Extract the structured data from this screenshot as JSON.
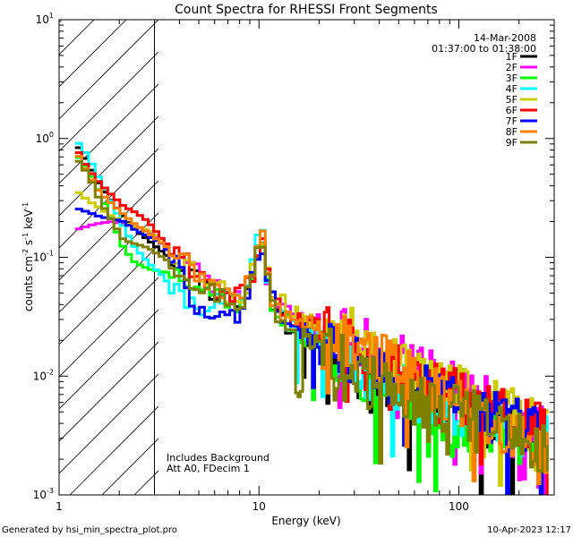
{
  "chart_data": {
    "type": "line",
    "title": "Count Spectra for RHESSI Front Segments",
    "xlabel": "Energy (keV)",
    "ylabel": "counts cm^-2 s^-1 keV^-1",
    "xscale": "log",
    "yscale": "log",
    "xlim": [
      1,
      300
    ],
    "ylim": [
      0.001,
      10
    ],
    "x_ticks": [
      {
        "value": 1,
        "label": "1"
      },
      {
        "value": 10,
        "label": "10"
      },
      {
        "value": 100,
        "label": "100"
      }
    ],
    "y_ticks": [
      {
        "value": 10,
        "base": "10",
        "exp": "1"
      },
      {
        "value": 1,
        "base": "10",
        "exp": "0"
      },
      {
        "value": 0.1,
        "base": "10",
        "exp": "-1"
      },
      {
        "value": 0.01,
        "base": "10",
        "exp": "-2"
      },
      {
        "value": 0.001,
        "base": "10",
        "exp": "-3"
      }
    ],
    "hatched_region": [
      1,
      3
    ],
    "date": "14-Mar-2008",
    "time_range": "01:37:00 to 01:38:00",
    "annotations": [
      "Includes Background",
      "Att A0, FDecim 1"
    ],
    "footer_left": "Generated by hsi_min_spectra_plot.pro",
    "footer_right": "10-Apr-2023 12:17",
    "series": [
      {
        "name": "1F",
        "color": "#000000",
        "seed": 11,
        "points": [
          [
            1.2,
            0.93
          ],
          [
            1.4,
            0.62
          ],
          [
            1.6,
            0.4
          ],
          [
            1.85,
            0.29
          ],
          [
            2.1,
            0.22
          ],
          [
            2.4,
            0.17
          ],
          [
            2.8,
            0.14
          ],
          [
            3.3,
            0.11
          ],
          [
            4.0,
            0.085
          ],
          [
            5.0,
            0.065
          ],
          [
            6.0,
            0.05
          ],
          [
            7.0,
            0.045
          ],
          [
            8.0,
            0.04
          ],
          [
            9.0,
            0.055
          ],
          [
            10.3,
            0.14
          ],
          [
            11.0,
            0.07
          ],
          [
            12.0,
            0.035
          ],
          [
            15.0,
            0.025
          ],
          [
            20.0,
            0.02
          ],
          [
            30.0,
            0.012
          ],
          [
            40.0,
            0.009
          ],
          [
            60.0,
            0.007
          ],
          [
            100.0,
            0.005
          ],
          [
            150.0,
            0.004
          ],
          [
            200.0,
            0.0035
          ],
          [
            280.0,
            0.003
          ]
        ]
      },
      {
        "name": "2F",
        "color": "#ff00ff",
        "seed": 23,
        "points": [
          [
            1.2,
            0.17
          ],
          [
            1.5,
            0.19
          ],
          [
            1.8,
            0.2
          ],
          [
            2.2,
            0.19
          ],
          [
            2.7,
            0.17
          ],
          [
            3.3,
            0.14
          ],
          [
            4.0,
            0.1
          ],
          [
            5.0,
            0.075
          ],
          [
            6.0,
            0.055
          ],
          [
            7.0,
            0.05
          ],
          [
            8.0,
            0.045
          ],
          [
            9.0,
            0.06
          ],
          [
            10.3,
            0.16
          ],
          [
            11.0,
            0.075
          ],
          [
            12.0,
            0.04
          ],
          [
            15.0,
            0.03
          ],
          [
            20.0,
            0.027
          ],
          [
            30.0,
            0.02
          ],
          [
            40.0,
            0.016
          ],
          [
            60.0,
            0.013
          ],
          [
            100.0,
            0.008
          ],
          [
            150.0,
            0.0055
          ],
          [
            200.0,
            0.0045
          ],
          [
            280.0,
            0.0035
          ]
        ]
      },
      {
        "name": "3F",
        "color": "#00ff00",
        "seed": 37,
        "points": [
          [
            1.2,
            0.75
          ],
          [
            1.4,
            0.55
          ],
          [
            1.6,
            0.35
          ],
          [
            1.85,
            0.2
          ],
          [
            2.1,
            0.12
          ],
          [
            2.4,
            0.09
          ],
          [
            2.8,
            0.08
          ],
          [
            3.3,
            0.075
          ],
          [
            4.0,
            0.075
          ],
          [
            5.0,
            0.06
          ],
          [
            6.0,
            0.05
          ],
          [
            7.0,
            0.045
          ],
          [
            8.0,
            0.04
          ],
          [
            9.0,
            0.055
          ],
          [
            10.3,
            0.15
          ],
          [
            11.0,
            0.07
          ],
          [
            12.0,
            0.035
          ],
          [
            15.0,
            0.025
          ],
          [
            20.0,
            0.018
          ],
          [
            30.0,
            0.011
          ],
          [
            40.0,
            0.008
          ],
          [
            60.0,
            0.006
          ],
          [
            100.0,
            0.004
          ],
          [
            150.0,
            0.0035
          ],
          [
            200.0,
            0.003
          ],
          [
            280.0,
            0.0025
          ]
        ]
      },
      {
        "name": "4F",
        "color": "#00ffff",
        "seed": 41,
        "points": [
          [
            1.2,
            1.0
          ],
          [
            1.4,
            0.7
          ],
          [
            1.6,
            0.45
          ],
          [
            1.85,
            0.28
          ],
          [
            2.1,
            0.18
          ],
          [
            2.4,
            0.12
          ],
          [
            2.8,
            0.09
          ],
          [
            3.3,
            0.07
          ],
          [
            4.0,
            0.045
          ],
          [
            5.0,
            0.04
          ],
          [
            6.0,
            0.04
          ],
          [
            7.0,
            0.045
          ],
          [
            8.0,
            0.04
          ],
          [
            9.0,
            0.06
          ],
          [
            10.3,
            0.19
          ],
          [
            11.0,
            0.08
          ],
          [
            12.0,
            0.035
          ],
          [
            15.0,
            0.025
          ],
          [
            20.0,
            0.02
          ],
          [
            30.0,
            0.013
          ],
          [
            40.0,
            0.009
          ],
          [
            60.0,
            0.007
          ],
          [
            100.0,
            0.005
          ],
          [
            150.0,
            0.004
          ],
          [
            200.0,
            0.0035
          ],
          [
            280.0,
            0.003
          ]
        ]
      },
      {
        "name": "5F",
        "color": "#cccc00",
        "seed": 53,
        "points": [
          [
            1.2,
            0.37
          ],
          [
            1.4,
            0.3
          ],
          [
            1.6,
            0.26
          ],
          [
            1.85,
            0.22
          ],
          [
            2.1,
            0.2
          ],
          [
            2.4,
            0.18
          ],
          [
            2.8,
            0.17
          ],
          [
            3.3,
            0.14
          ],
          [
            4.0,
            0.1
          ],
          [
            5.0,
            0.075
          ],
          [
            6.0,
            0.06
          ],
          [
            7.0,
            0.05
          ],
          [
            8.0,
            0.045
          ],
          [
            9.0,
            0.06
          ],
          [
            10.3,
            0.17
          ],
          [
            11.0,
            0.08
          ],
          [
            12.0,
            0.045
          ],
          [
            15.0,
            0.035
          ],
          [
            20.0,
            0.03
          ],
          [
            30.0,
            0.022
          ],
          [
            40.0,
            0.017
          ],
          [
            60.0,
            0.011
          ],
          [
            100.0,
            0.0075
          ],
          [
            150.0,
            0.0055
          ],
          [
            200.0,
            0.0045
          ],
          [
            280.0,
            0.0035
          ]
        ]
      },
      {
        "name": "6F",
        "color": "#ff0000",
        "seed": 61,
        "points": [
          [
            1.2,
            0.85
          ],
          [
            1.4,
            0.55
          ],
          [
            1.6,
            0.42
          ],
          [
            1.85,
            0.33
          ],
          [
            2.1,
            0.27
          ],
          [
            2.4,
            0.24
          ],
          [
            2.8,
            0.2
          ],
          [
            3.3,
            0.14
          ],
          [
            4.0,
            0.1
          ],
          [
            5.0,
            0.075
          ],
          [
            6.0,
            0.055
          ],
          [
            7.0,
            0.05
          ],
          [
            8.0,
            0.045
          ],
          [
            9.0,
            0.06
          ],
          [
            10.3,
            0.16
          ],
          [
            11.0,
            0.075
          ],
          [
            12.0,
            0.04
          ],
          [
            15.0,
            0.03
          ],
          [
            20.0,
            0.025
          ],
          [
            30.0,
            0.018
          ],
          [
            40.0,
            0.014
          ],
          [
            60.0,
            0.01
          ],
          [
            100.0,
            0.007
          ],
          [
            150.0,
            0.005
          ],
          [
            200.0,
            0.004
          ],
          [
            280.0,
            0.0035
          ]
        ]
      },
      {
        "name": "7F",
        "color": "#0000ff",
        "seed": 73,
        "points": [
          [
            1.2,
            0.26
          ],
          [
            1.4,
            0.24
          ],
          [
            1.6,
            0.22
          ],
          [
            1.85,
            0.21
          ],
          [
            2.1,
            0.2
          ],
          [
            2.4,
            0.17
          ],
          [
            2.8,
            0.15
          ],
          [
            3.3,
            0.13
          ],
          [
            4.0,
            0.08
          ],
          [
            5.0,
            0.035
          ],
          [
            6.0,
            0.028
          ],
          [
            7.0,
            0.03
          ],
          [
            8.0,
            0.03
          ],
          [
            9.0,
            0.05
          ],
          [
            10.3,
            0.14
          ],
          [
            11.0,
            0.07
          ],
          [
            12.0,
            0.035
          ],
          [
            15.0,
            0.025
          ],
          [
            20.0,
            0.02
          ],
          [
            30.0,
            0.014
          ],
          [
            40.0,
            0.01
          ],
          [
            60.0,
            0.008
          ],
          [
            100.0,
            0.006
          ],
          [
            150.0,
            0.0045
          ],
          [
            200.0,
            0.0038
          ],
          [
            280.0,
            0.003
          ]
        ]
      },
      {
        "name": "8F",
        "color": "#ff8000",
        "seed": 89,
        "points": [
          [
            1.2,
            0.8
          ],
          [
            1.4,
            0.5
          ],
          [
            1.6,
            0.35
          ],
          [
            1.85,
            0.28
          ],
          [
            2.1,
            0.23
          ],
          [
            2.4,
            0.19
          ],
          [
            2.8,
            0.16
          ],
          [
            3.3,
            0.13
          ],
          [
            4.0,
            0.1
          ],
          [
            5.0,
            0.07
          ],
          [
            6.0,
            0.055
          ],
          [
            7.0,
            0.05
          ],
          [
            8.0,
            0.045
          ],
          [
            9.0,
            0.06
          ],
          [
            10.3,
            0.16
          ],
          [
            11.0,
            0.075
          ],
          [
            12.0,
            0.04
          ],
          [
            15.0,
            0.03
          ],
          [
            20.0,
            0.025
          ],
          [
            30.0,
            0.018
          ],
          [
            40.0,
            0.014
          ],
          [
            60.0,
            0.01
          ],
          [
            100.0,
            0.006
          ],
          [
            150.0,
            0.004
          ],
          [
            200.0,
            0.003
          ],
          [
            280.0,
            0.0025
          ]
        ]
      },
      {
        "name": "9F",
        "color": "#808000",
        "seed": 97,
        "points": [
          [
            1.2,
            0.7
          ],
          [
            1.4,
            0.5
          ],
          [
            1.6,
            0.3
          ],
          [
            1.85,
            0.2
          ],
          [
            2.1,
            0.14
          ],
          [
            2.4,
            0.13
          ],
          [
            2.8,
            0.12
          ],
          [
            3.3,
            0.1
          ],
          [
            4.0,
            0.08
          ],
          [
            5.0,
            0.06
          ],
          [
            6.0,
            0.05
          ],
          [
            7.0,
            0.045
          ],
          [
            8.0,
            0.04
          ],
          [
            9.0,
            0.055
          ],
          [
            10.3,
            0.15
          ],
          [
            11.0,
            0.07
          ],
          [
            12.0,
            0.035
          ],
          [
            15.0,
            0.025
          ],
          [
            20.0,
            0.018
          ],
          [
            30.0,
            0.012
          ],
          [
            40.0,
            0.008
          ],
          [
            60.0,
            0.006
          ],
          [
            100.0,
            0.005
          ],
          [
            150.0,
            0.004
          ],
          [
            200.0,
            0.003
          ],
          [
            280.0,
            0.0025
          ]
        ]
      }
    ]
  }
}
